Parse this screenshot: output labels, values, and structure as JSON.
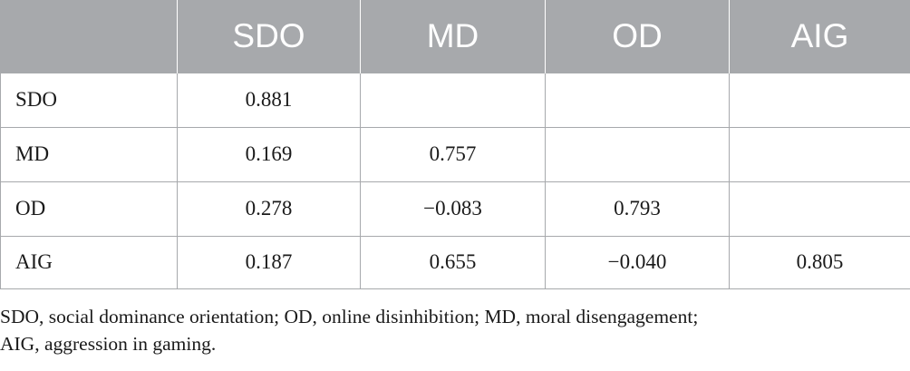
{
  "table": {
    "headers": [
      "",
      "SDO",
      "MD",
      "OD",
      "AIG"
    ],
    "rows": [
      {
        "label": "SDO",
        "cells": [
          "0.881",
          "",
          "",
          ""
        ]
      },
      {
        "label": "MD",
        "cells": [
          "0.169",
          "0.757",
          "",
          ""
        ]
      },
      {
        "label": "OD",
        "cells": [
          "0.278",
          "−0.083",
          "0.793",
          ""
        ]
      },
      {
        "label": "AIG",
        "cells": [
          "0.187",
          "0.655",
          "−0.040",
          "0.805"
        ]
      }
    ]
  },
  "footnote": {
    "line1": "SDO, social dominance orientation; OD, online disinhibition; MD, moral disengagement;",
    "line2": "AIG, aggression in gaming."
  },
  "colors": {
    "header_bg": "#a7a9ac",
    "header_text": "#ffffff",
    "border": "#a7a9ac",
    "body_text": "#1a1a1a"
  }
}
